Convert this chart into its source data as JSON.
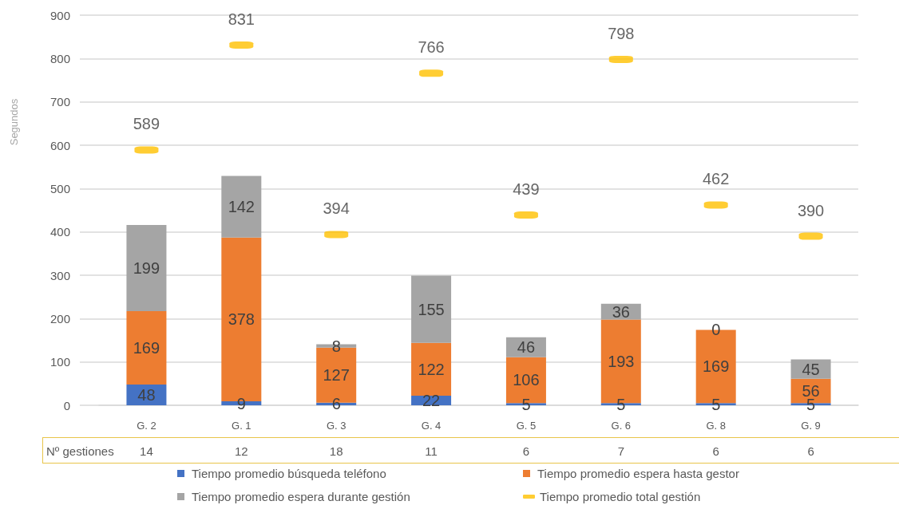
{
  "chart_data": {
    "type": "bar",
    "ylabel": "Segundos",
    "categories": [
      "G. 2",
      "G. 1",
      "G. 3",
      "G. 4",
      "G. 5",
      "G. 6",
      "G. 8",
      "G. 9"
    ],
    "stacked": true,
    "series": [
      {
        "name": "Tiempo promedio búsqueda teléfono",
        "color": "#4472c4",
        "values": [
          48,
          9,
          6,
          22,
          5,
          5,
          5,
          5
        ]
      },
      {
        "name": "Tiempo promedio espera hasta gestor",
        "color": "#ed7d31",
        "values": [
          169,
          378,
          127,
          122,
          106,
          193,
          169,
          56
        ]
      },
      {
        "name": "Tiempo promedio espera durante gestión",
        "color": "#a5a5a5",
        "values": [
          199,
          142,
          8,
          155,
          46,
          36,
          0,
          45
        ]
      },
      {
        "name": "Tiempo promedio total gestión",
        "type": "scatter",
        "color": "#ffc000",
        "x": [
          "G. 2",
          "G. 1",
          "G. 3",
          "G. 4",
          "G. 5",
          "G. 6",
          "G. 8",
          "G. 9"
        ],
        "values": [
          589,
          831,
          394,
          766,
          439,
          798,
          462,
          390
        ]
      }
    ],
    "annotations": [
      "Nº gestiones",
      "14",
      "12",
      "18",
      "11",
      "6",
      "7",
      "6",
      "6"
    ],
    "ylim": [
      0,
      900
    ],
    "yticks": [
      0,
      100,
      200,
      300,
      400,
      500,
      600,
      700,
      800,
      900
    ],
    "grid": "y",
    "legend": "bottom",
    "data_labels": true
  }
}
